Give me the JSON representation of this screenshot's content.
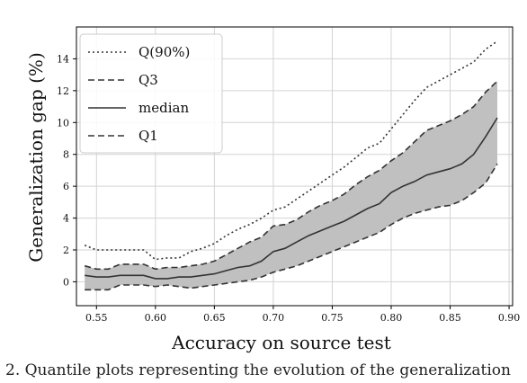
{
  "chart_data": {
    "type": "line",
    "title": "",
    "xlabel": "Accuracy on source test",
    "ylabel": "Generalization gap (%)",
    "xlim": [
      0.533,
      0.903
    ],
    "ylim": [
      -1.5,
      16
    ],
    "xticks": [
      "0.55",
      "0.60",
      "0.65",
      "0.70",
      "0.75",
      "0.80",
      "0.85",
      "0.90"
    ],
    "yticks": [
      "0",
      "2",
      "4",
      "6",
      "8",
      "10",
      "12",
      "14"
    ],
    "grid": true,
    "legend_position": "top-left",
    "shaded_band": "between Q1 and Q3",
    "band_color": "#c0c0c0",
    "line_color": "#333333",
    "x": [
      0.54,
      0.55,
      0.56,
      0.57,
      0.58,
      0.59,
      0.6,
      0.61,
      0.62,
      0.63,
      0.64,
      0.65,
      0.66,
      0.67,
      0.68,
      0.69,
      0.7,
      0.71,
      0.72,
      0.73,
      0.74,
      0.75,
      0.76,
      0.77,
      0.78,
      0.79,
      0.8,
      0.81,
      0.82,
      0.83,
      0.84,
      0.85,
      0.86,
      0.87,
      0.88,
      0.89
    ],
    "series": [
      {
        "name": "Q(90%)",
        "style": "dotted",
        "values": [
          2.3,
          2.0,
          2.0,
          2.0,
          2.0,
          2.0,
          1.4,
          1.5,
          1.5,
          1.9,
          2.1,
          2.4,
          2.9,
          3.3,
          3.6,
          4.0,
          4.5,
          4.7,
          5.2,
          5.7,
          6.2,
          6.7,
          7.2,
          7.8,
          8.4,
          8.7,
          9.6,
          10.5,
          11.4,
          12.2,
          12.6,
          13.0,
          13.4,
          13.8,
          14.6,
          15.1
        ]
      },
      {
        "name": "Q3",
        "style": "dashed",
        "values": [
          1.0,
          0.8,
          0.8,
          1.1,
          1.1,
          1.1,
          0.8,
          0.9,
          0.9,
          1.0,
          1.1,
          1.3,
          1.7,
          2.1,
          2.5,
          2.8,
          3.5,
          3.6,
          3.9,
          4.4,
          4.8,
          5.1,
          5.5,
          6.1,
          6.6,
          7.0,
          7.6,
          8.1,
          8.8,
          9.5,
          9.8,
          10.1,
          10.5,
          11.0,
          11.9,
          12.6
        ]
      },
      {
        "name": "median",
        "style": "solid",
        "values": [
          0.4,
          0.3,
          0.3,
          0.4,
          0.4,
          0.4,
          0.2,
          0.2,
          0.3,
          0.3,
          0.4,
          0.5,
          0.7,
          0.9,
          1.0,
          1.3,
          1.9,
          2.1,
          2.5,
          2.9,
          3.2,
          3.5,
          3.8,
          4.2,
          4.6,
          4.9,
          5.6,
          6.0,
          6.3,
          6.7,
          6.9,
          7.1,
          7.4,
          8.0,
          9.1,
          10.3
        ]
      },
      {
        "name": "Q1",
        "style": "dashed",
        "values": [
          -0.5,
          -0.5,
          -0.5,
          -0.2,
          -0.2,
          -0.2,
          -0.3,
          -0.2,
          -0.3,
          -0.4,
          -0.3,
          -0.2,
          -0.1,
          0.0,
          0.1,
          0.3,
          0.6,
          0.8,
          1.0,
          1.3,
          1.6,
          1.9,
          2.2,
          2.5,
          2.8,
          3.1,
          3.6,
          4.0,
          4.3,
          4.5,
          4.7,
          4.8,
          5.1,
          5.6,
          6.2,
          7.4
        ]
      }
    ]
  },
  "caption": {
    "text": "2. Quantile plots representing the evolution of the generalization"
  }
}
